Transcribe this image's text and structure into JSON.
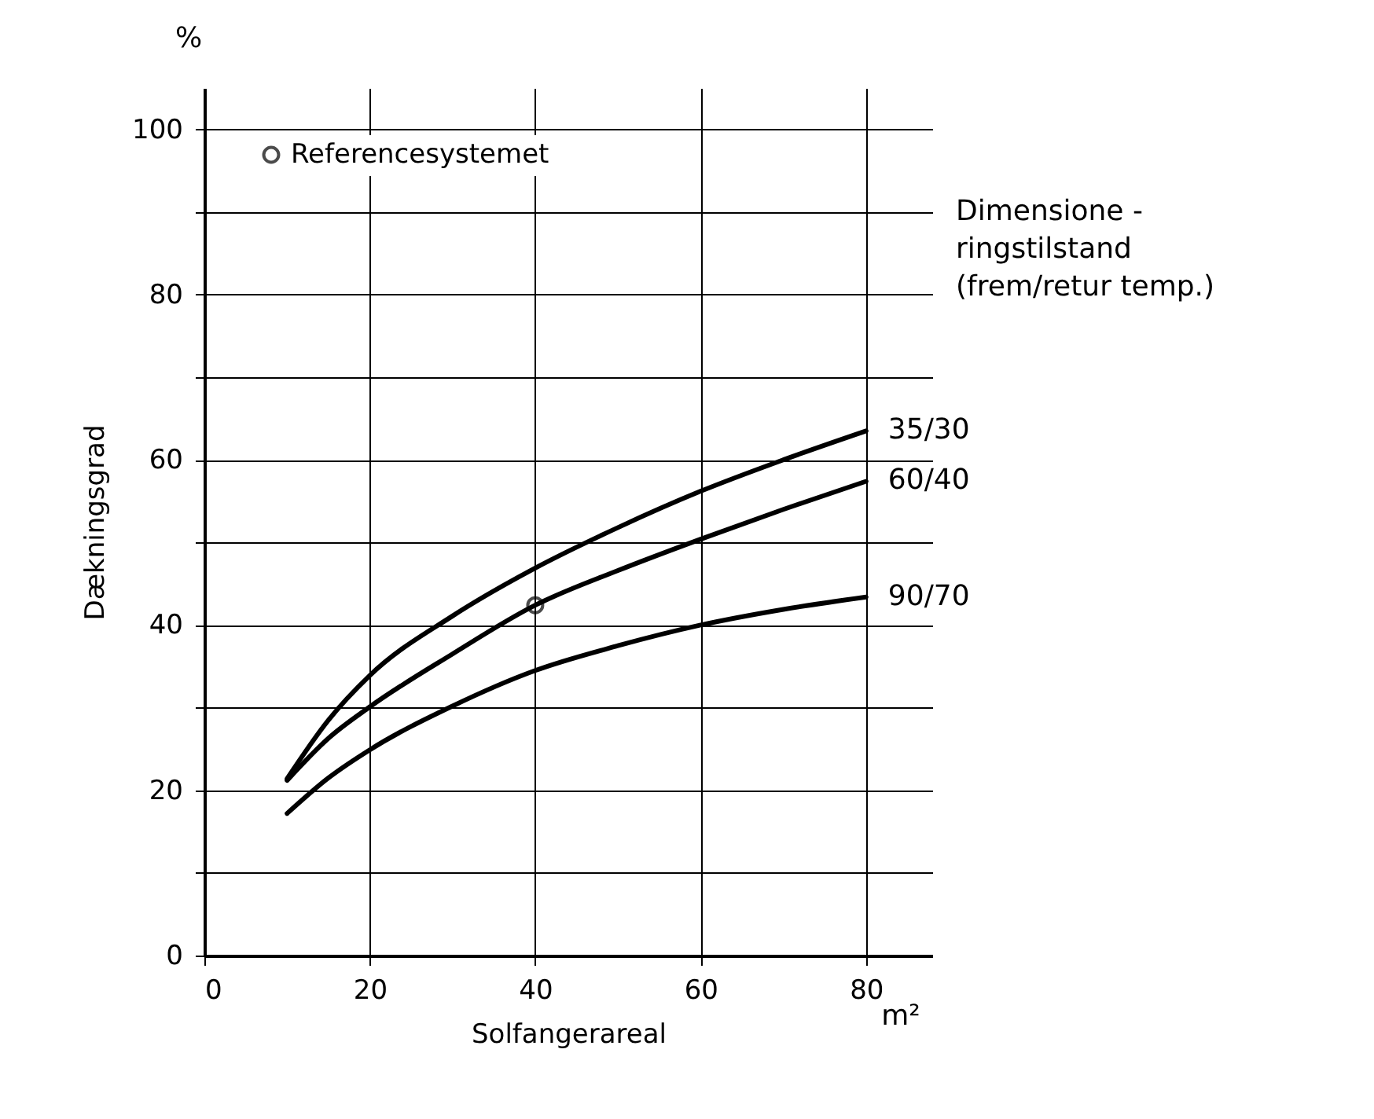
{
  "chart_data": {
    "type": "line",
    "xlabel": "Solfangerareal",
    "ylabel": "Dækningsgrad",
    "xlim": [
      0,
      88
    ],
    "ylim": [
      0,
      105
    ],
    "xticks": [
      0,
      20,
      40,
      60,
      80
    ],
    "yticks": [
      0,
      {
        "value": 10,
        "label": null
      },
      20,
      {
        "value": 30,
        "label": null
      },
      40,
      {
        "value": 50,
        "label": null
      },
      60,
      {
        "value": 70,
        "label": null
      },
      80,
      {
        "value": 90,
        "label": null
      },
      100
    ],
    "grid": true,
    "legend": "top left",
    "line_style": "solid",
    "annotations": [
      "%",
      "m²",
      "Dimensione -\nringstilstand\n(frem/retur temp.)"
    ],
    "series": [
      {
        "name": "35/30",
        "color": "#000000",
        "x": [
          10,
          15,
          20,
          30,
          40,
          50,
          60,
          70,
          80
        ],
        "values": [
          21.4,
          28.5,
          33.9,
          41.1,
          46.9,
          51.8,
          56.2,
          60,
          63.5
        ]
      },
      {
        "name": "60/40",
        "color": "#000000",
        "x": [
          10,
          15,
          20,
          30,
          40,
          50,
          60,
          70,
          80
        ],
        "values": [
          21.2,
          26.3,
          30.1,
          36.5,
          42.4,
          46.6,
          50.4,
          54,
          57.4
        ]
      },
      {
        "name": "90/70",
        "color": "#000000",
        "x": [
          10,
          15,
          20,
          30,
          40,
          50,
          60,
          70,
          80
        ],
        "values": [
          17.2,
          21.5,
          24.9,
          30.2,
          34.5,
          37.5,
          40,
          41.9,
          43.4
        ]
      },
      {
        "name": "Referencesystemet",
        "type": "scatter",
        "marker": "circle",
        "color": "#000000",
        "x": [
          40
        ],
        "values": [
          42.4
        ]
      }
    ]
  }
}
